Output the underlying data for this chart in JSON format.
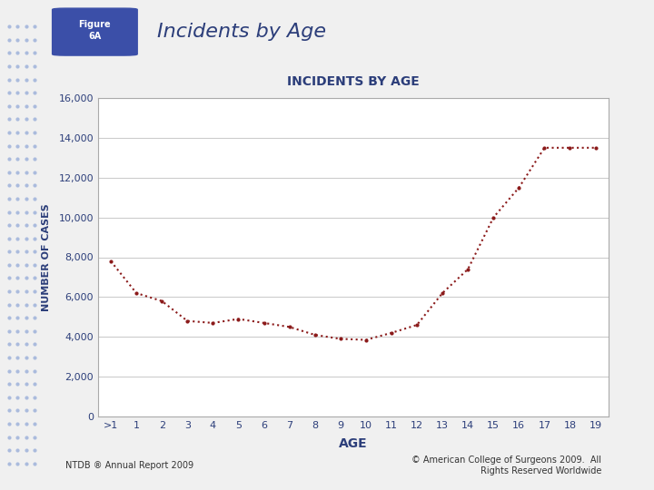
{
  "title": "INCIDENTS BY AGE",
  "xlabel": "AGE",
  "ylabel": "NUMBER OF CASES",
  "header_label": "Incidents by Age",
  "figure_label": "Figure\n6A",
  "footer_left": "NTDB ® Annual Report 2009",
  "footer_right": "© American College of Surgeons 2009.  All\nRights Reserved Worldwide",
  "x_labels": [
    ">1",
    "1",
    "2",
    "3",
    "4",
    "5",
    "6",
    "7",
    "8",
    "9",
    "10",
    "11",
    "12",
    "13",
    "14",
    "15",
    "16",
    "17",
    "18",
    "19"
  ],
  "y_values": [
    7800,
    6200,
    5800,
    4800,
    4700,
    4900,
    4700,
    4500,
    4100,
    3900,
    3850,
    4200,
    4600,
    6200,
    7400,
    10000,
    11500,
    13500,
    13500,
    13500
  ],
  "ylim": [
    0,
    16000
  ],
  "yticks": [
    0,
    2000,
    4000,
    6000,
    8000,
    10000,
    12000,
    14000,
    16000
  ],
  "line_color": "#8B1A1A",
  "bg_color": "#f0f0f0",
  "plot_bg": "#ffffff",
  "title_color": "#2c3e7a",
  "axis_label_color": "#2c3e7a",
  "tick_color": "#2c3e7a",
  "figure_badge_color": "#3b4fa8",
  "header_text_color": "#2c3e7a",
  "dot_color": "#8B1A1A"
}
